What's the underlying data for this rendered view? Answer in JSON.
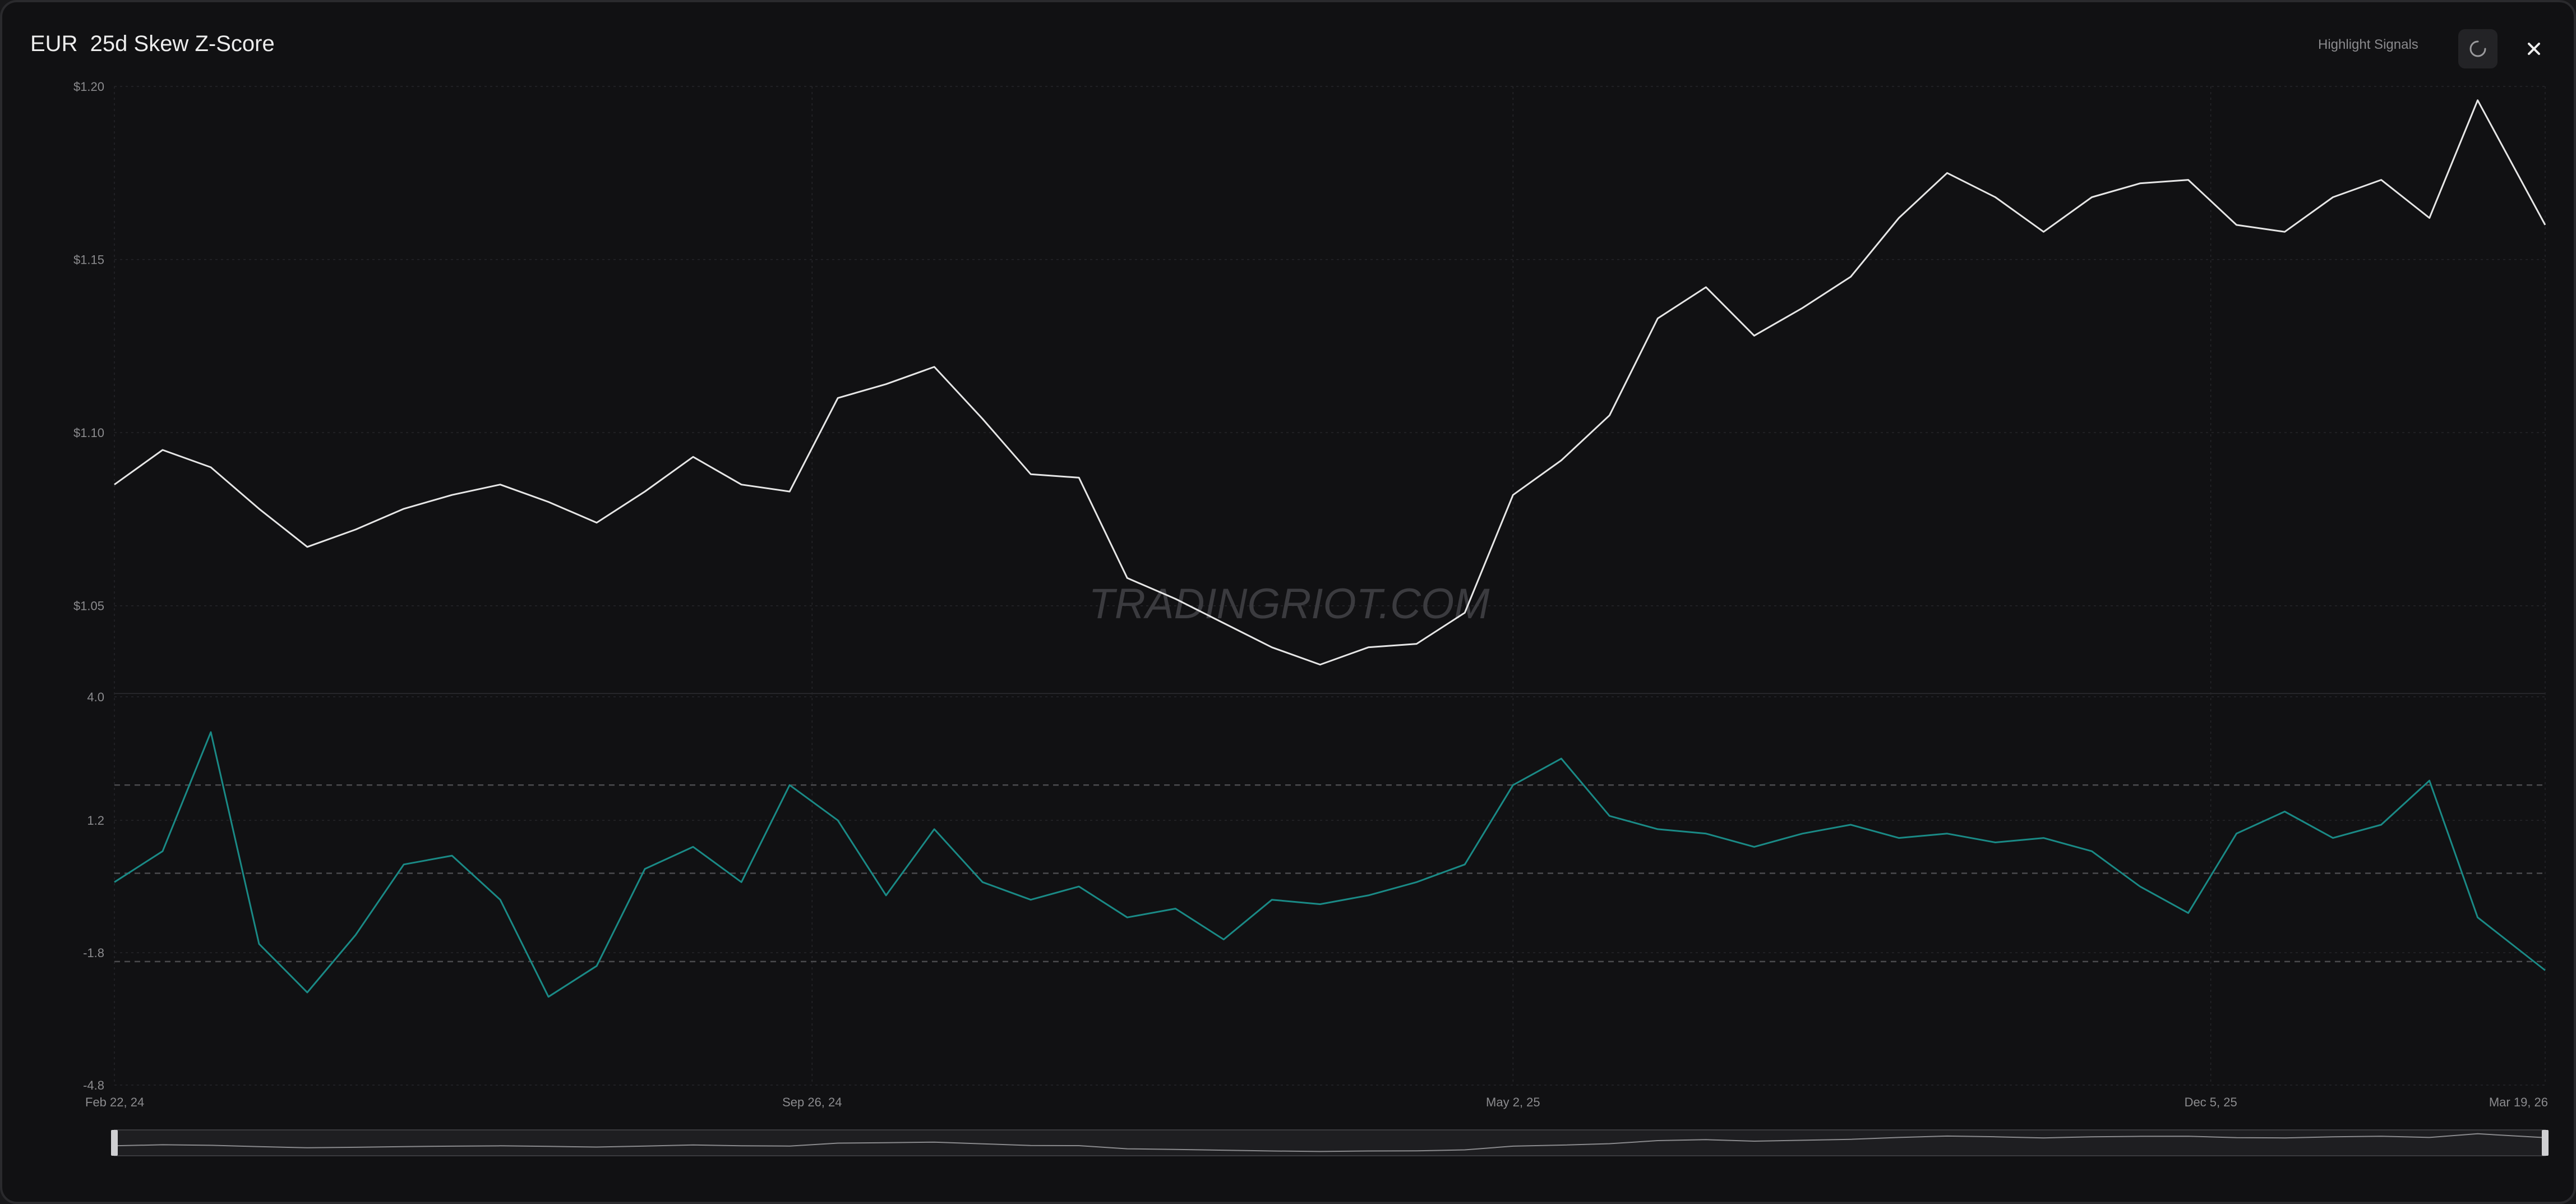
{
  "header": {
    "title": "EUR  25d Skew Z-Score",
    "highlight_label": "Highlight Signals"
  },
  "icons": {
    "refresh": "refresh-icon",
    "close": "close-icon"
  },
  "watermark": "TRADINGRIOT.COM",
  "colors": {
    "background": "#111113",
    "price_line": "#e6e6e6",
    "zscore_line": "#1a8a86",
    "grid": "#26262a",
    "threshold": "#4a4a4e"
  },
  "chart_data": [
    {
      "type": "line",
      "series": [
        {
          "x": [
            "2024-02-22",
            "2024-03-08",
            "2024-03-23",
            "2024-04-07",
            "2024-04-22",
            "2024-05-07",
            "2024-05-22",
            "2024-06-06",
            "2024-06-21",
            "2024-07-06",
            "2024-07-21",
            "2024-08-05",
            "2024-08-20",
            "2024-09-04",
            "2024-09-19",
            "2024-10-04",
            "2024-10-19",
            "2024-11-03",
            "2024-11-18",
            "2024-12-03",
            "2024-12-18",
            "2025-01-02",
            "2025-01-17",
            "2025-02-01",
            "2025-02-16",
            "2025-03-03",
            "2025-03-18",
            "2025-04-02",
            "2025-04-17",
            "2025-05-02",
            "2025-05-17",
            "2025-06-01",
            "2025-06-16",
            "2025-07-01",
            "2025-07-16",
            "2025-07-31",
            "2025-08-15",
            "2025-08-30",
            "2025-09-14",
            "2025-09-29",
            "2025-10-14",
            "2025-10-29",
            "2025-11-13",
            "2025-11-28",
            "2025-12-13",
            "2025-12-28",
            "2026-01-12",
            "2026-01-27",
            "2026-02-11",
            "2026-02-26",
            "2026-03-19"
          ],
          "values": [
            1.085,
            1.095,
            1.09,
            1.078,
            1.067,
            1.072,
            1.078,
            1.082,
            1.085,
            1.08,
            1.074,
            1.083,
            1.093,
            1.085,
            1.083,
            1.11,
            1.114,
            1.119,
            1.104,
            1.088,
            1.087,
            1.058,
            1.052,
            1.045,
            1.038,
            1.033,
            1.038,
            1.039,
            1.048,
            1.082,
            1.092,
            1.105,
            1.133,
            1.142,
            1.128,
            1.136,
            1.145,
            1.162,
            1.175,
            1.168,
            1.158,
            1.168,
            1.172,
            1.173,
            1.16,
            1.158,
            1.168,
            1.173,
            1.162,
            1.196,
            1.16
          ]
        }
      ],
      "ylim": [
        1.025,
        1.2
      ],
      "yticks": [
        "$1.05",
        "$1.10",
        "$1.15",
        "$1.20"
      ],
      "ytick_values": [
        1.05,
        1.1,
        1.15,
        1.2
      ],
      "grid": true
    },
    {
      "type": "line",
      "series": [
        {
          "x": [
            "2024-02-22",
            "2024-03-08",
            "2024-03-23",
            "2024-04-07",
            "2024-04-22",
            "2024-05-07",
            "2024-05-22",
            "2024-06-06",
            "2024-06-21",
            "2024-07-06",
            "2024-07-21",
            "2024-08-05",
            "2024-08-20",
            "2024-09-04",
            "2024-09-19",
            "2024-10-04",
            "2024-10-19",
            "2024-11-03",
            "2024-11-18",
            "2024-12-03",
            "2024-12-18",
            "2025-01-02",
            "2025-01-17",
            "2025-02-01",
            "2025-02-16",
            "2025-03-03",
            "2025-03-18",
            "2025-04-02",
            "2025-04-17",
            "2025-05-02",
            "2025-05-17",
            "2025-06-01",
            "2025-06-16",
            "2025-07-01",
            "2025-07-16",
            "2025-07-31",
            "2025-08-15",
            "2025-08-30",
            "2025-09-14",
            "2025-09-29",
            "2025-10-14",
            "2025-10-29",
            "2025-11-13",
            "2025-11-28",
            "2025-12-13",
            "2025-12-28",
            "2026-01-12",
            "2026-01-27",
            "2026-02-11",
            "2026-02-26",
            "2026-03-19"
          ],
          "values": [
            -0.2,
            0.5,
            3.2,
            -1.6,
            -2.7,
            -1.4,
            0.2,
            0.4,
            -0.6,
            -2.8,
            -2.1,
            0.1,
            0.6,
            -0.2,
            2.0,
            1.2,
            -0.5,
            1.0,
            -0.2,
            -0.6,
            -0.3,
            -1.0,
            -0.8,
            -1.5,
            -0.6,
            -0.7,
            -0.5,
            -0.2,
            0.2,
            2.0,
            2.6,
            1.3,
            1.0,
            0.9,
            0.6,
            0.9,
            1.1,
            0.8,
            0.9,
            0.7,
            0.8,
            0.5,
            -0.3,
            -0.9,
            0.9,
            1.4,
            0.8,
            1.1,
            2.1,
            -1.0,
            -2.2
          ]
        }
      ],
      "ylim": [
        -4.8,
        4.0
      ],
      "yticks": [
        "-4.8",
        "-1.8",
        "1.2",
        "4.0"
      ],
      "ytick_values": [
        -4.8,
        -1.8,
        1.2,
        4.0
      ],
      "thresholds": [
        2,
        0,
        -2
      ],
      "grid": true
    }
  ],
  "x_axis": {
    "ticks": [
      "Feb 22, 24",
      "Sep 26, 24",
      "May 2, 25",
      "Dec 5, 25",
      "Mar 19, 26"
    ],
    "tick_dates": [
      "2024-02-22",
      "2024-09-26",
      "2025-05-02",
      "2025-12-05",
      "2026-03-19"
    ],
    "range": [
      "2024-02-22",
      "2026-03-19"
    ]
  }
}
